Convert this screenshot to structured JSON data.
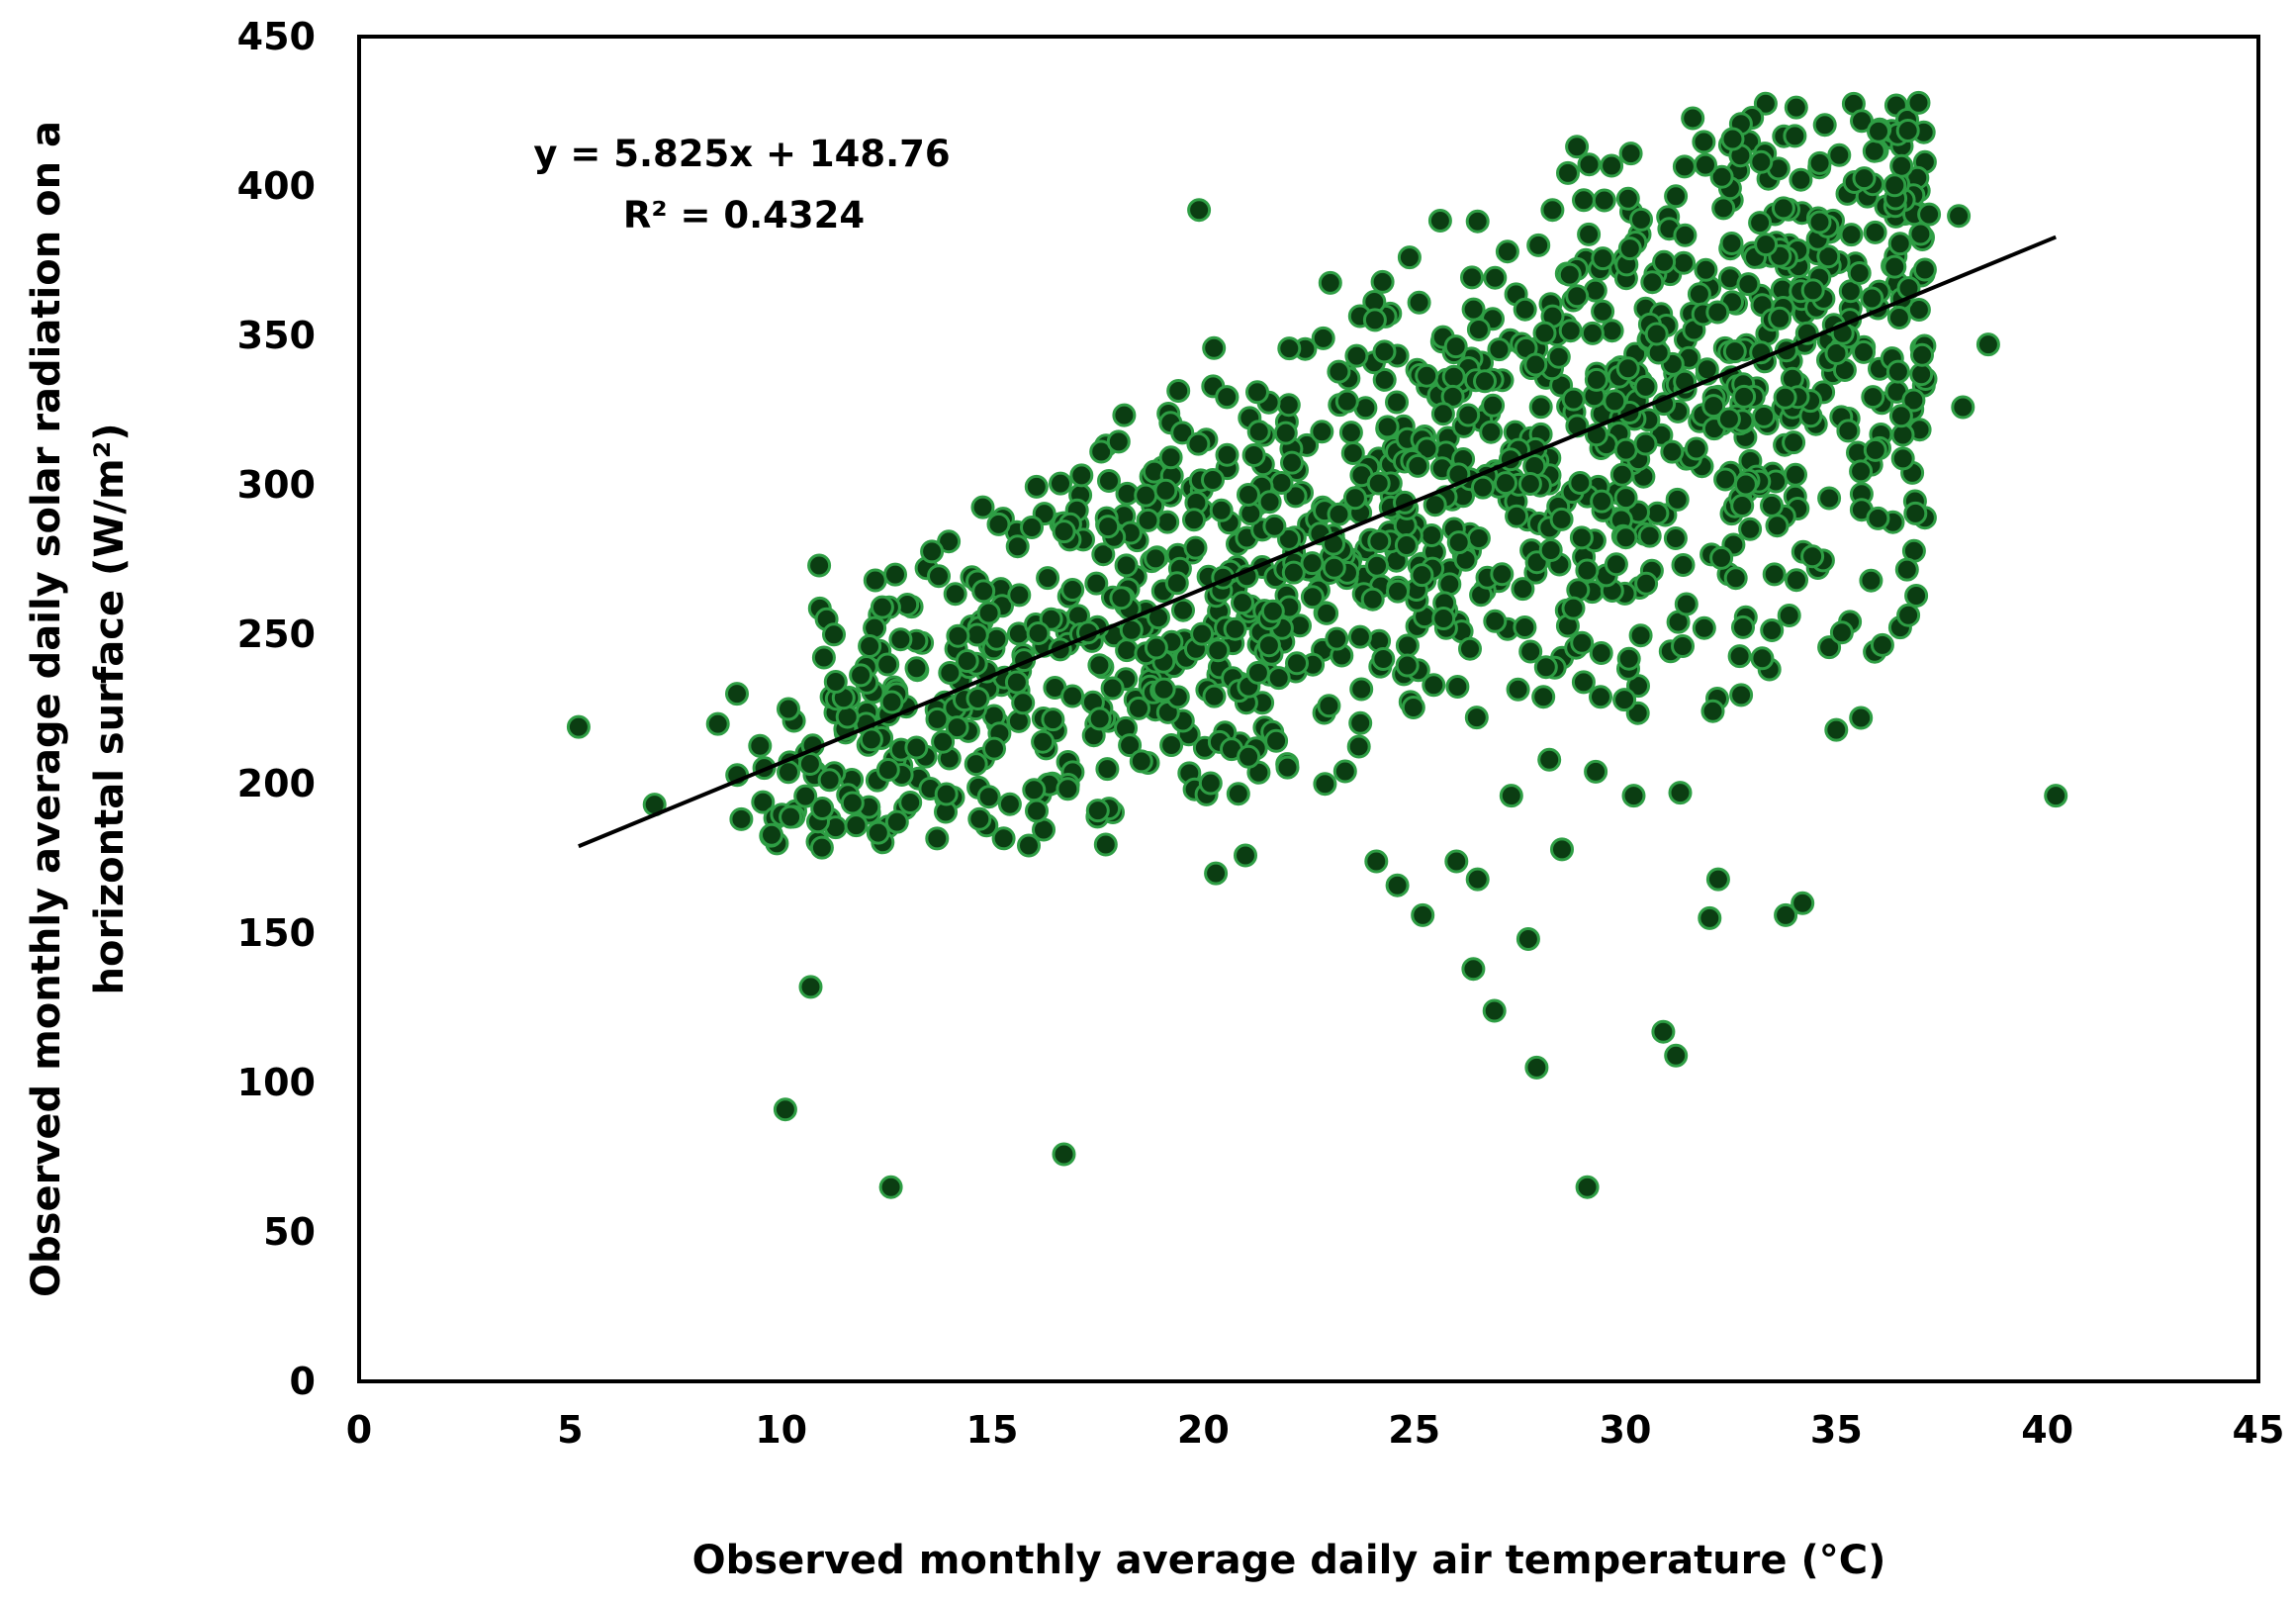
{
  "chart_data": {
    "type": "scatter",
    "title": "",
    "xlabel": "Observed monthly average daily air temperature (°C)",
    "ylabel_line1": "Observed monthly average daily solar radiation on a",
    "ylabel_line2": "horizontal surface  (W/m²)",
    "xlim": [
      0,
      45
    ],
    "ylim": [
      0,
      450
    ],
    "x_ticks": [
      0,
      5,
      10,
      15,
      20,
      25,
      30,
      35,
      40,
      45
    ],
    "y_ticks": [
      0,
      50,
      100,
      150,
      200,
      250,
      300,
      350,
      400,
      450
    ],
    "grid": false,
    "legend": "none",
    "marker_color": "#0b3d12",
    "marker_edge_color": "#2e9e44",
    "trendline_color": "#000000",
    "trendline": {
      "slope": 5.825,
      "intercept": 148.76,
      "x_start": 5.2,
      "x_end": 40.2
    },
    "annotations": {
      "equation": "y = 5.825x + 148.76",
      "r_squared": "R² = 0.4324"
    },
    "outlier_points": [
      {
        "x": 5.2,
        "y": 219
      },
      {
        "x": 7.0,
        "y": 193
      },
      {
        "x": 10.1,
        "y": 91
      },
      {
        "x": 10.7,
        "y": 132
      },
      {
        "x": 12.6,
        "y": 65
      },
      {
        "x": 16.7,
        "y": 76
      },
      {
        "x": 20.3,
        "y": 170
      },
      {
        "x": 21.0,
        "y": 176
      },
      {
        "x": 24.1,
        "y": 174
      },
      {
        "x": 24.6,
        "y": 166
      },
      {
        "x": 25.2,
        "y": 156
      },
      {
        "x": 26.0,
        "y": 174
      },
      {
        "x": 26.5,
        "y": 168
      },
      {
        "x": 26.4,
        "y": 138
      },
      {
        "x": 26.9,
        "y": 124
      },
      {
        "x": 27.7,
        "y": 148
      },
      {
        "x": 27.9,
        "y": 105
      },
      {
        "x": 28.5,
        "y": 178
      },
      {
        "x": 29.1,
        "y": 65
      },
      {
        "x": 30.9,
        "y": 117
      },
      {
        "x": 31.2,
        "y": 109
      },
      {
        "x": 32.0,
        "y": 155
      },
      {
        "x": 32.2,
        "y": 168
      },
      {
        "x": 33.8,
        "y": 156
      },
      {
        "x": 34.2,
        "y": 160
      },
      {
        "x": 40.2,
        "y": 196
      },
      {
        "x": 35.0,
        "y": 218
      },
      {
        "x": 38.6,
        "y": 347
      },
      {
        "x": 38.0,
        "y": 326
      },
      {
        "x": 37.9,
        "y": 390
      },
      {
        "x": 37.1,
        "y": 408
      },
      {
        "x": 19.9,
        "y": 392
      },
      {
        "x": 9.9,
        "y": 180
      },
      {
        "x": 8.5,
        "y": 220
      },
      {
        "x": 10.9,
        "y": 273
      },
      {
        "x": 29.3,
        "y": 204
      },
      {
        "x": 30.2,
        "y": 196
      },
      {
        "x": 31.3,
        "y": 197
      },
      {
        "x": 27.3,
        "y": 196
      },
      {
        "x": 28.2,
        "y": 208
      },
      {
        "x": 37.1,
        "y": 289
      },
      {
        "x": 36.8,
        "y": 304
      }
    ],
    "cluster_seed": 20240917,
    "cluster_points_count": 1180
  }
}
